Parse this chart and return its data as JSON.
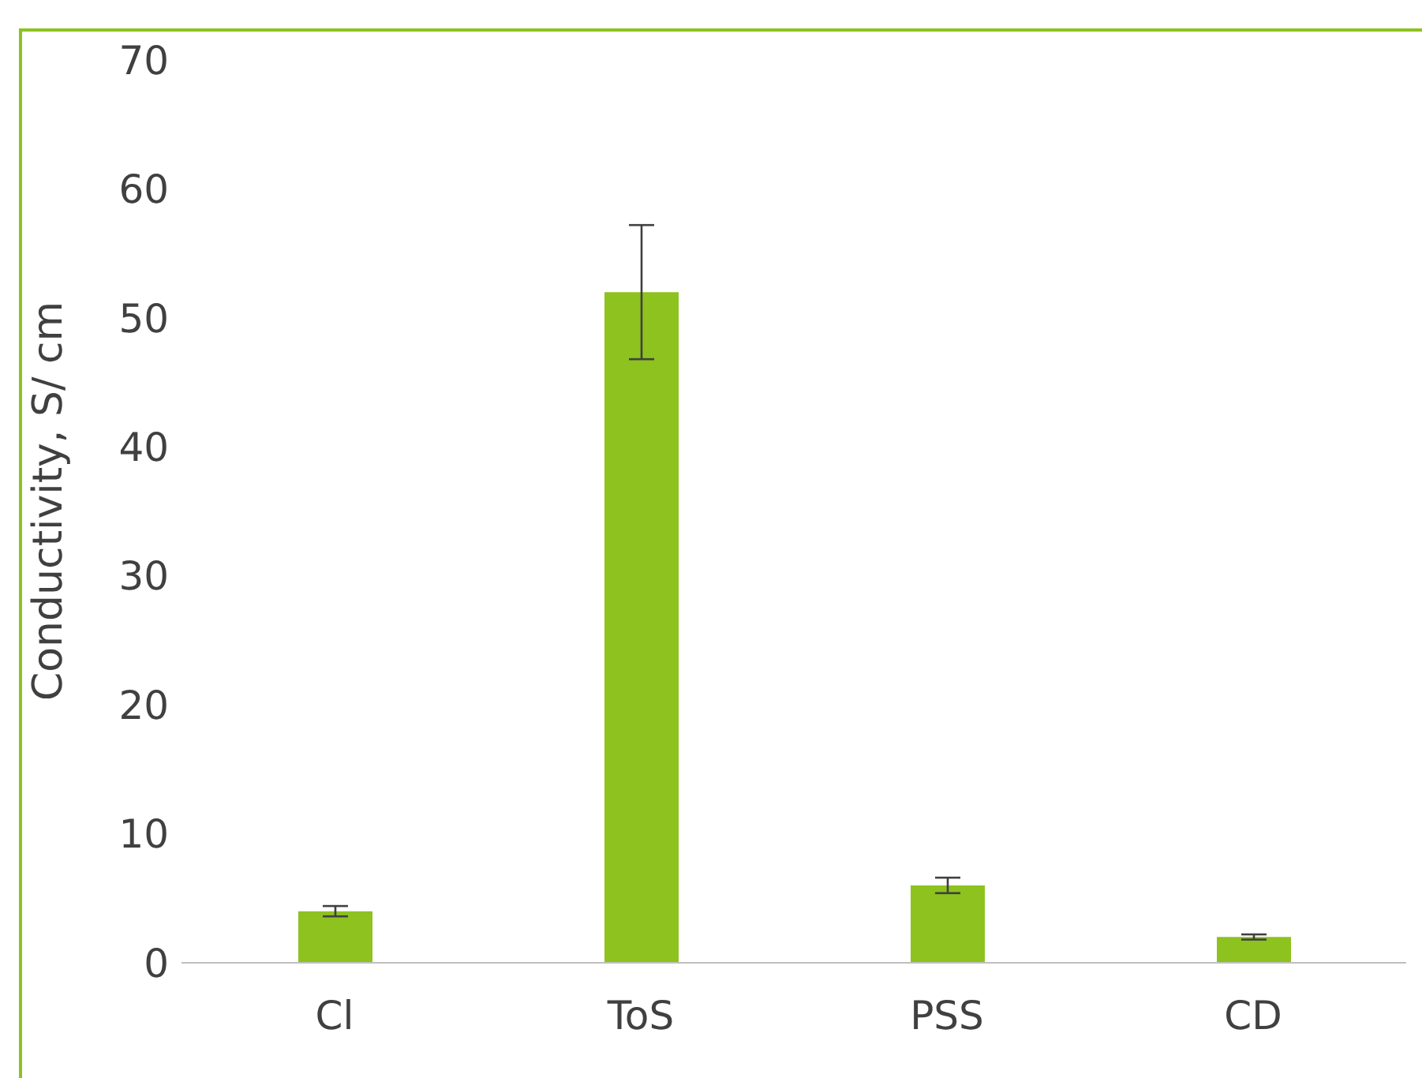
{
  "chart_data": {
    "type": "bar",
    "ylabel": "Conductivity, S/ cm",
    "categories": [
      "Cl",
      "ToS",
      "PSS",
      "CD"
    ],
    "values": [
      4,
      52,
      6,
      2
    ],
    "errors": [
      0.4,
      5.2,
      0.6,
      0.2
    ],
    "color": "#8dc21f",
    "ylim": [
      0,
      70
    ],
    "yticks": [
      0,
      10,
      20,
      30,
      40,
      50,
      60,
      70
    ]
  }
}
